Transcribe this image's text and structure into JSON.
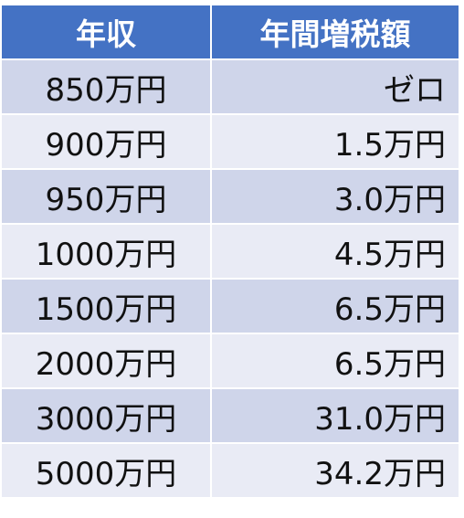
{
  "table": {
    "headers": {
      "income": "年収",
      "tax_increase": "年間増税額"
    },
    "rows": [
      {
        "income": "850万円",
        "tax_increase": "ゼロ"
      },
      {
        "income": "900万円",
        "tax_increase": "1.5万円"
      },
      {
        "income": "950万円",
        "tax_increase": "3.0万円"
      },
      {
        "income": "1000万円",
        "tax_increase": "4.5万円"
      },
      {
        "income": "1500万円",
        "tax_increase": "6.5万円"
      },
      {
        "income": "2000万円",
        "tax_increase": "6.5万円"
      },
      {
        "income": "3000万円",
        "tax_increase": "31.0万円"
      },
      {
        "income": "5000万円",
        "tax_increase": "34.2万円"
      }
    ]
  },
  "colors": {
    "header_bg": "#4472c4",
    "row_odd_bg": "#cfd5ea",
    "row_even_bg": "#e9ebf5"
  }
}
